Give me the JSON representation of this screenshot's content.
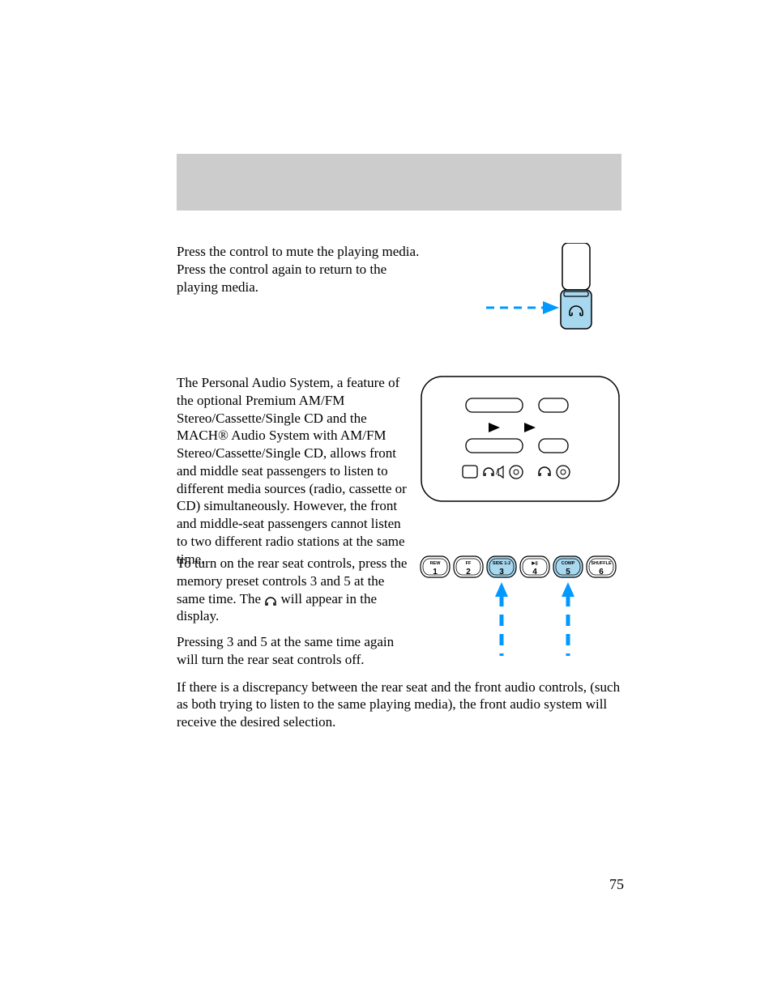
{
  "page_number": "75",
  "section1": {
    "para1": "Press the control to mute the playing media. Press the control again to return to the playing media."
  },
  "fig1": {
    "arrow_color": "#0099ff",
    "fill_upper": "#ffffff",
    "fill_lower": "#a8d8ef",
    "stroke": "#000000"
  },
  "section2": {
    "para1": "The Personal Audio System, a feature of the optional Premium AM/FM Stereo/Cassette/Single CD and the MACH® Audio System with AM/FM Stereo/Cassette/Single CD, allows front and middle seat passengers to listen to different media sources (radio, cassette or CD) simultaneously. However, the front and middle-seat passengers cannot listen to two different radio stations at the same time.",
    "para2_a": "To turn on the rear seat controls, press the memory preset controls 3 and 5 at the same time. The ",
    "para2_b": " will appear in the display.",
    "para3": "Pressing 3 and 5 at the same time again will turn the rear seat controls off.",
    "para4": "If there is a discrepancy between the rear seat and the front audio controls, (such as both trying to listen to the same playing media), the front audio system will receive the desired selection."
  },
  "fig_panel": {
    "stroke": "#000000",
    "bg": "#ffffff"
  },
  "preset_buttons": [
    {
      "top": "REW",
      "num": "1",
      "highlight": false
    },
    {
      "top": "FF",
      "num": "2",
      "highlight": false
    },
    {
      "top": "SIDE 1-2",
      "num": "3",
      "highlight": true
    },
    {
      "top": "▶||",
      "num": "4",
      "highlight": false
    },
    {
      "top": "COMP",
      "num": "5",
      "highlight": true
    },
    {
      "top": "SHUFFLE",
      "num": "6",
      "highlight": false
    }
  ],
  "colors": {
    "highlight": "#a8d8ef",
    "arrow": "#0099ff",
    "stroke": "#000000"
  }
}
